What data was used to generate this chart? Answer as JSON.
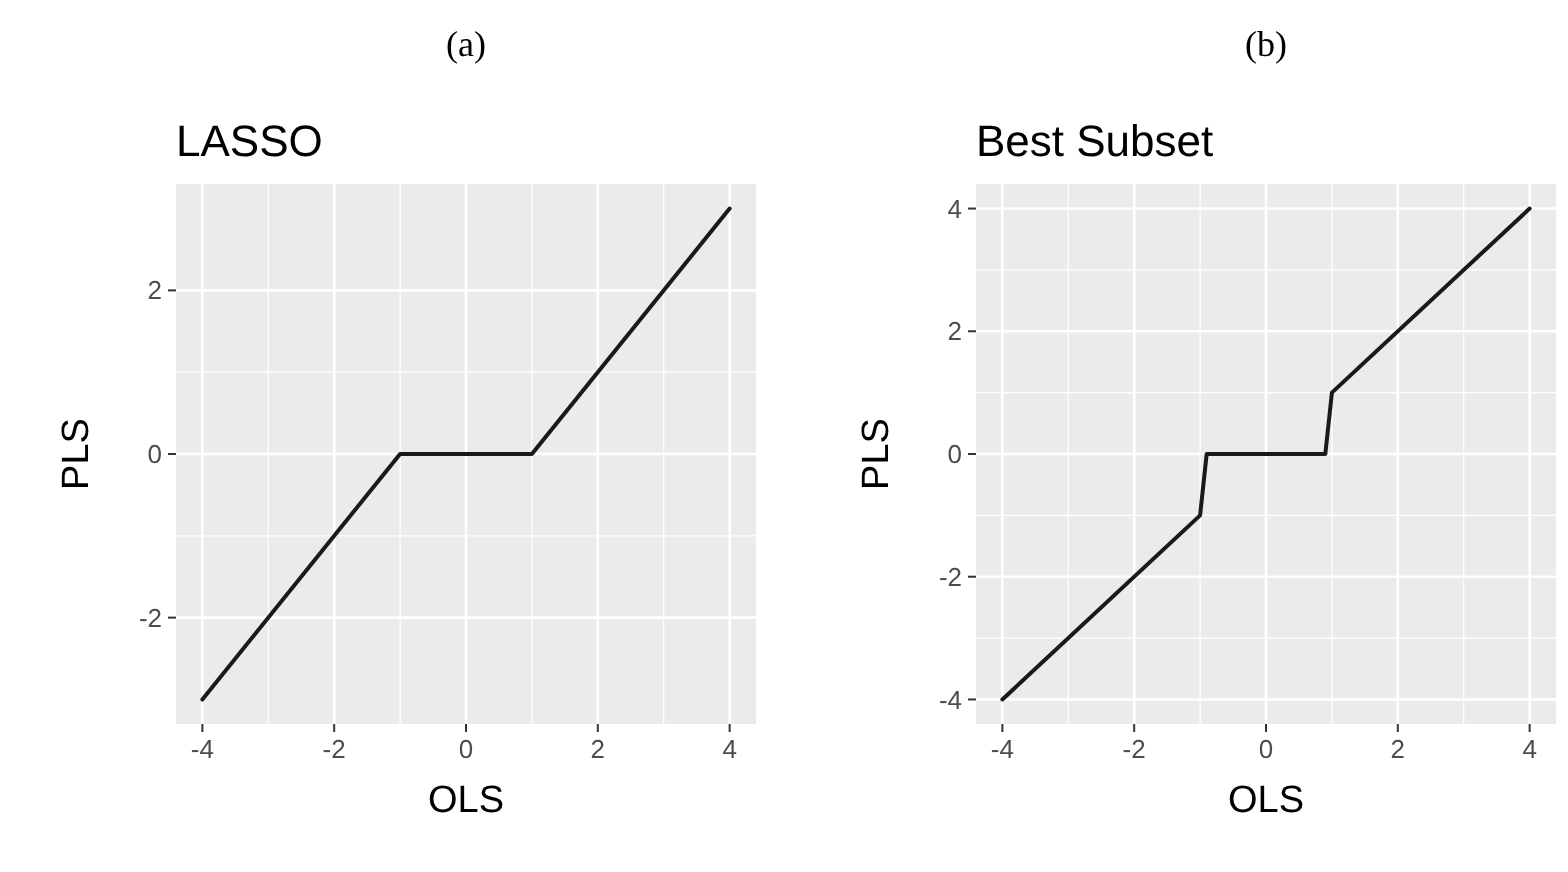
{
  "chart_data": [
    {
      "type": "line",
      "annotations": [
        "(a)"
      ],
      "title": "LASSO",
      "xlabel": "OLS",
      "ylabel": "PLS",
      "x": [
        -4,
        -1,
        1,
        4
      ],
      "series": [
        {
          "color": "#1a1a1a",
          "values": [
            -3,
            0,
            0,
            3
          ]
        }
      ],
      "xlim": [
        -4.4,
        4.4
      ],
      "ylim": [
        -3.3,
        3.3
      ],
      "xticks": [
        -4,
        -2,
        0,
        2,
        4
      ],
      "yticks": [
        -2,
        0,
        2
      ],
      "grid": true
    },
    {
      "type": "line",
      "annotations": [
        "(b)"
      ],
      "title": "Best Subset",
      "xlabel": "OLS",
      "ylabel": "PLS",
      "x": [
        -4,
        -1,
        -0.9,
        0.9,
        1,
        4
      ],
      "series": [
        {
          "color": "#1a1a1a",
          "values": [
            -4,
            -1,
            0,
            0,
            1,
            4
          ]
        }
      ],
      "xlim": [
        -4.4,
        4.4
      ],
      "ylim": [
        -4.4,
        4.4
      ],
      "xticks": [
        -4,
        -2,
        0,
        2,
        4
      ],
      "yticks": [
        -4,
        -2,
        0,
        2,
        4
      ],
      "grid": true
    }
  ]
}
